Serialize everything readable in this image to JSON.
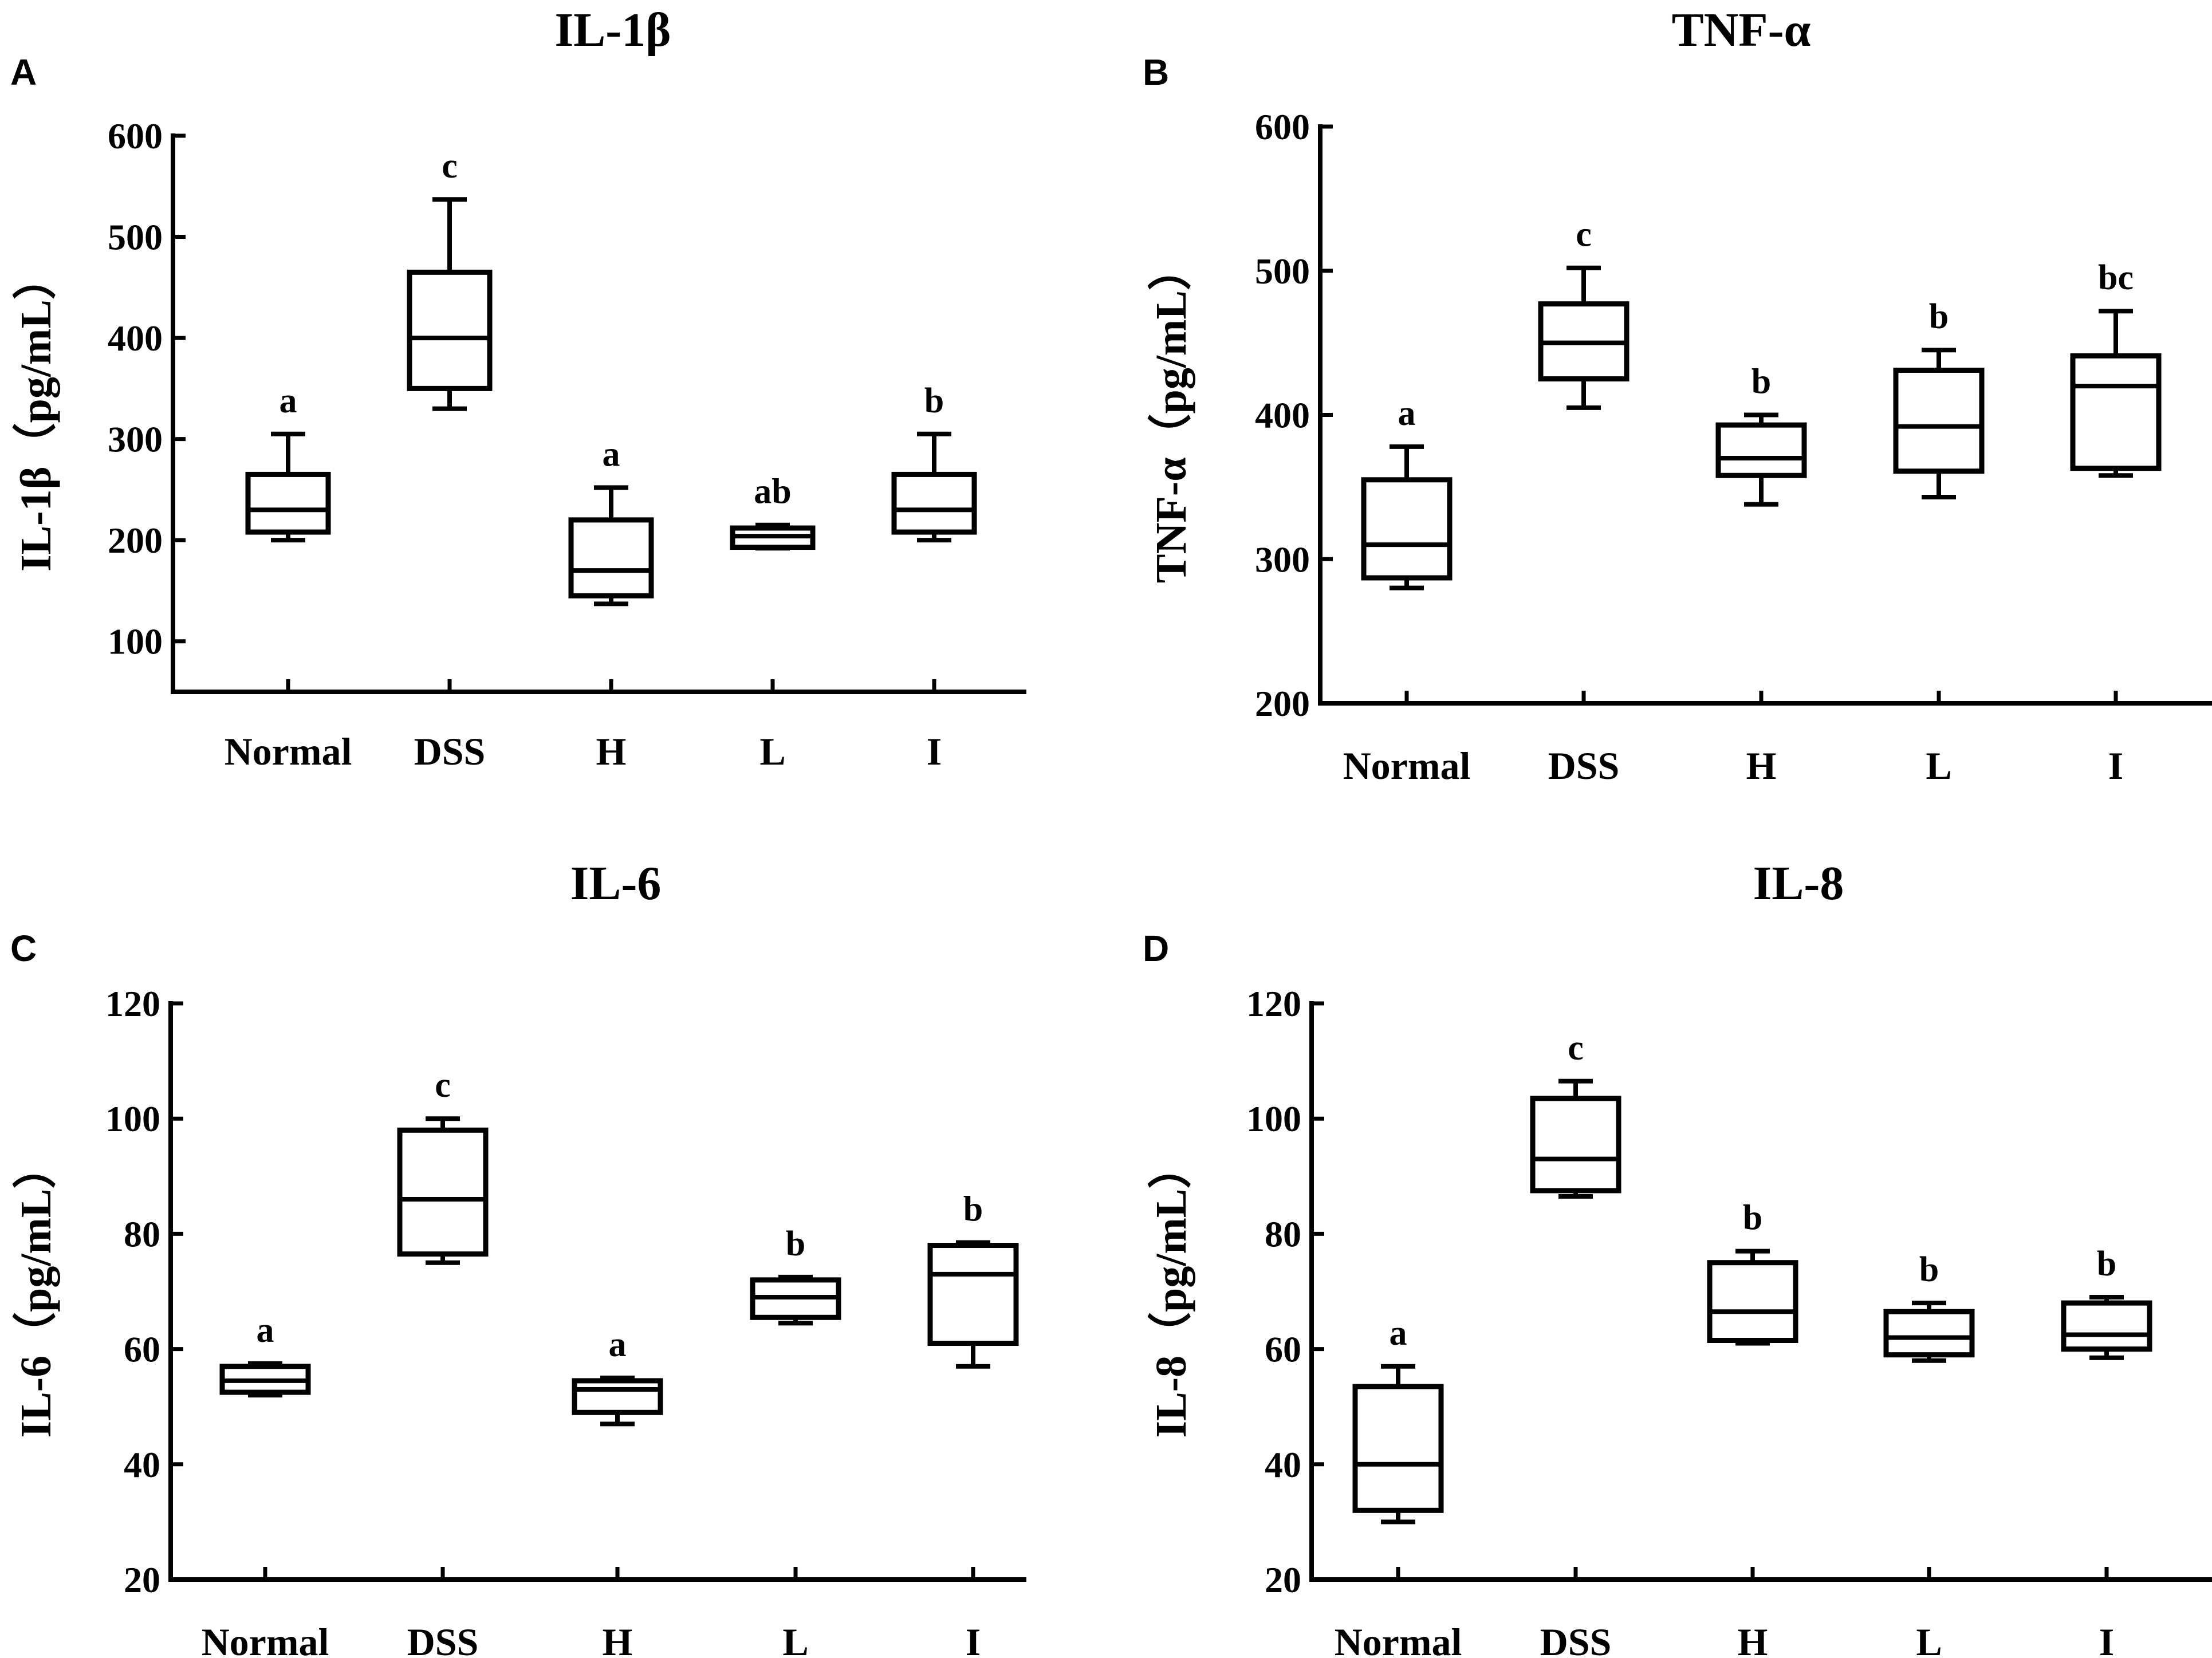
{
  "chart_data": [
    {
      "panel": "A",
      "type": "box",
      "title": "IL-1β",
      "ylabel": "IL-1β（pg/mL）",
      "ylim": [
        50,
        600
      ],
      "yticks": [
        100,
        200,
        300,
        400,
        500,
        600
      ],
      "categories": [
        "Normal",
        "DSS",
        "H",
        "L",
        "I"
      ],
      "boxes": [
        {
          "min": 200,
          "q1": 208,
          "median": 230,
          "q3": 265,
          "max": 305,
          "label": "a"
        },
        {
          "min": 330,
          "q1": 350,
          "median": 400,
          "q3": 465,
          "max": 537,
          "label": "c"
        },
        {
          "min": 137,
          "q1": 145,
          "median": 170,
          "q3": 220,
          "max": 252,
          "label": "a"
        },
        {
          "min": 192,
          "q1": 193,
          "median": 204,
          "q3": 212,
          "max": 215,
          "label": "ab"
        },
        {
          "min": 200,
          "q1": 208,
          "median": 230,
          "q3": 265,
          "max": 305,
          "label": "b"
        }
      ]
    },
    {
      "panel": "B",
      "type": "box",
      "title": "TNF-α",
      "ylabel": "TNF-α（pg/mL）",
      "ylim": [
        200,
        600
      ],
      "yticks": [
        200,
        300,
        400,
        500,
        600
      ],
      "categories": [
        "Normal",
        "DSS",
        "H",
        "L",
        "I"
      ],
      "boxes": [
        {
          "min": 280,
          "q1": 287,
          "median": 310,
          "q3": 355,
          "max": 378,
          "label": "a"
        },
        {
          "min": 405,
          "q1": 425,
          "median": 450,
          "q3": 477,
          "max": 502,
          "label": "c"
        },
        {
          "min": 338,
          "q1": 358,
          "median": 370,
          "q3": 393,
          "max": 400,
          "label": "b"
        },
        {
          "min": 343,
          "q1": 361,
          "median": 392,
          "q3": 431,
          "max": 445,
          "label": "b"
        },
        {
          "min": 358,
          "q1": 363,
          "median": 420,
          "q3": 441,
          "max": 472,
          "label": "bc"
        }
      ]
    },
    {
      "panel": "C",
      "type": "box",
      "title": "IL-6",
      "ylabel": "IL-6（pg/mL）",
      "ylim": [
        20,
        120
      ],
      "yticks": [
        20,
        40,
        60,
        80,
        100,
        120
      ],
      "categories": [
        "Normal",
        "DSS",
        "H",
        "L",
        "I"
      ],
      "boxes": [
        {
          "min": 52,
          "q1": 52.5,
          "median": 54.5,
          "q3": 57,
          "max": 57.5,
          "label": "a"
        },
        {
          "min": 75,
          "q1": 76.5,
          "median": 86,
          "q3": 98,
          "max": 100,
          "label": "c"
        },
        {
          "min": 47,
          "q1": 49,
          "median": 53,
          "q3": 54.5,
          "max": 55,
          "label": "a"
        },
        {
          "min": 64.5,
          "q1": 65.5,
          "median": 69,
          "q3": 72,
          "max": 72.5,
          "label": "b"
        },
        {
          "min": 57,
          "q1": 61,
          "median": 73,
          "q3": 78,
          "max": 78.5,
          "label": "b"
        }
      ]
    },
    {
      "panel": "D",
      "type": "box",
      "title": "IL-8",
      "ylabel": "IL-8（pg/mL）",
      "ylim": [
        20,
        120
      ],
      "yticks": [
        20,
        40,
        60,
        80,
        100,
        120
      ],
      "categories": [
        "Normal",
        "DSS",
        "H",
        "L",
        "I"
      ],
      "boxes": [
        {
          "min": 30,
          "q1": 32,
          "median": 40,
          "q3": 53.5,
          "max": 57,
          "label": "a"
        },
        {
          "min": 86.5,
          "q1": 87.5,
          "median": 93,
          "q3": 103.5,
          "max": 106.5,
          "label": "c"
        },
        {
          "min": 61,
          "q1": 61.5,
          "median": 66.5,
          "q3": 75,
          "max": 77,
          "label": "b"
        },
        {
          "min": 58,
          "q1": 59,
          "median": 62,
          "q3": 66.5,
          "max": 68,
          "label": "b"
        },
        {
          "min": 58.5,
          "q1": 60,
          "median": 62.5,
          "q3": 68,
          "max": 69,
          "label": "b"
        }
      ]
    }
  ]
}
